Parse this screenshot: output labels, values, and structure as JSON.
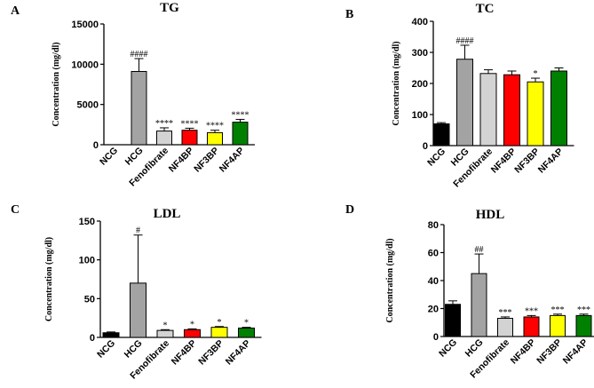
{
  "chart_data": [
    {
      "type": "bar",
      "panel_label": "A",
      "title": "TG",
      "ylabel": "Concentration (mg/dl)",
      "categories": [
        "NCG",
        "HCG",
        "Fenofibrate",
        "NF4BP",
        "NF3BP",
        "NF4AP"
      ],
      "values": [
        0,
        9100,
        1700,
        1800,
        1500,
        2800
      ],
      "errors": [
        0,
        1600,
        400,
        250,
        300,
        350
      ],
      "annotations": [
        "",
        "####",
        "****",
        "****",
        "****",
        "****"
      ],
      "colors": [
        "#000000",
        "#a3a3a3",
        "#d3d3d3",
        "#ff0000",
        "#ffff00",
        "#008000"
      ],
      "ylim": [
        0,
        15000
      ],
      "yticks": [
        "0",
        "5000",
        "10000",
        "15000"
      ],
      "ytick_values": [
        0,
        5000,
        10000,
        15000
      ]
    },
    {
      "type": "bar",
      "panel_label": "B",
      "title": "TC",
      "ylabel": "Concentration (mg/dl)",
      "categories": [
        "NCG",
        "HCG",
        "Fenofibrate",
        "NF4BP",
        "NF3BP",
        "NF4AP"
      ],
      "values": [
        70,
        278,
        232,
        228,
        205,
        240
      ],
      "errors": [
        4,
        45,
        12,
        12,
        12,
        10
      ],
      "annotations": [
        "",
        "####",
        "",
        "",
        "*",
        ""
      ],
      "colors": [
        "#000000",
        "#a3a3a3",
        "#d3d3d3",
        "#ff0000",
        "#ffff00",
        "#008000"
      ],
      "ylim": [
        0,
        400
      ],
      "yticks": [
        "0",
        "100",
        "200",
        "300",
        "400"
      ],
      "ytick_values": [
        0,
        100,
        200,
        300,
        400
      ]
    },
    {
      "type": "bar",
      "panel_label": "C",
      "title": "LDL",
      "ylabel": "Concentration (mg/dl)",
      "categories": [
        "NCG",
        "HCG",
        "Fenofibrate",
        "NF4BP",
        "NF3BP",
        "NF4AP"
      ],
      "values": [
        6,
        70,
        9,
        10,
        13,
        12
      ],
      "errors": [
        1,
        62,
        1,
        1,
        1,
        1
      ],
      "annotations": [
        "",
        "#",
        "*",
        "*",
        "*",
        "*"
      ],
      "colors": [
        "#000000",
        "#a3a3a3",
        "#d3d3d3",
        "#ff0000",
        "#ffff00",
        "#008000"
      ],
      "ylim": [
        0,
        150
      ],
      "yticks": [
        "0",
        "50",
        "100",
        "150"
      ],
      "ytick_values": [
        0,
        50,
        100,
        150
      ]
    },
    {
      "type": "bar",
      "panel_label": "D",
      "title": "HDL",
      "ylabel": "Concentration (mg/dl)",
      "categories": [
        "NCG",
        "HCG",
        "Fenofibrate",
        "NF4BP",
        "NF3BP",
        "NF4AP"
      ],
      "values": [
        23,
        45,
        13,
        14,
        15,
        15
      ],
      "errors": [
        2.5,
        14,
        1,
        1,
        1,
        1
      ],
      "annotations": [
        "",
        "##",
        "***",
        "***",
        "***",
        "***"
      ],
      "colors": [
        "#000000",
        "#a3a3a3",
        "#d3d3d3",
        "#ff0000",
        "#ffff00",
        "#008000"
      ],
      "ylim": [
        0,
        80
      ],
      "yticks": [
        "0",
        "20",
        "40",
        "60",
        "80"
      ],
      "ytick_values": [
        0,
        20,
        40,
        60,
        80
      ]
    }
  ]
}
